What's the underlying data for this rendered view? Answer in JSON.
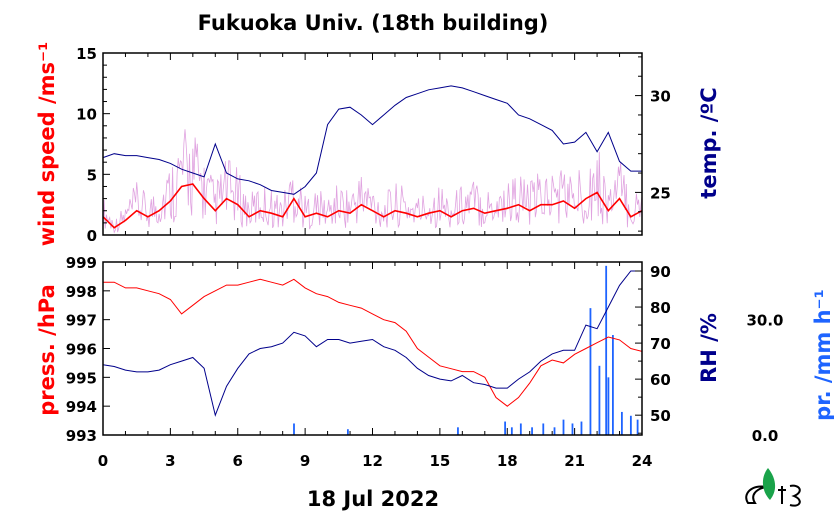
{
  "chart_data": [
    {
      "type": "line",
      "title": "Fukuoka Univ. (18th building)",
      "x_range": [
        0,
        24
      ],
      "ylabel_left": "wind speed /ms⁻¹",
      "ylabel_right": "temp. /ºC",
      "ylim_left": [
        0,
        15
      ],
      "ylim_right": [
        22.8,
        32.2
      ],
      "left_ticks": [
        0,
        5,
        10,
        15
      ],
      "right_ticks": [
        25,
        30
      ],
      "colors": {
        "wind": "#ff0000",
        "wind_gust": "#dd99dd",
        "temp": "#00008b"
      },
      "series": [
        {
          "axis": "left",
          "x": [
            0,
            0.5,
            1,
            1.5,
            2,
            2.5,
            3,
            3.5,
            4,
            4.5,
            5,
            5.5,
            6,
            6.5,
            7,
            7.5,
            8,
            8.5,
            9,
            9.5,
            10,
            10.5,
            11,
            11.5,
            12,
            12.5,
            13,
            13.5,
            14,
            14.5,
            15,
            15.5,
            16,
            16.5,
            17,
            17.5,
            18,
            18.5,
            19,
            19.5,
            20,
            20.5,
            21,
            21.5,
            22,
            22.5,
            23,
            23.5,
            24
          ],
          "values": [
            1.5,
            0.6,
            1.2,
            2.0,
            1.5,
            2.0,
            2.8,
            4.0,
            4.2,
            3.0,
            2.0,
            3.0,
            2.5,
            1.5,
            2.0,
            1.8,
            1.5,
            3.0,
            1.5,
            1.8,
            1.5,
            2.0,
            1.8,
            2.5,
            2.0,
            1.5,
            2.0,
            1.8,
            1.5,
            1.8,
            2.0,
            1.5,
            2.0,
            2.2,
            1.8,
            2.0,
            2.2,
            2.5,
            2.0,
            2.5,
            2.5,
            2.8,
            2.2,
            3.0,
            3.5,
            2.0,
            3.0,
            1.5,
            2.0
          ]
        },
        {
          "axis": "right",
          "x": [
            0,
            0.5,
            1,
            1.5,
            2,
            2.5,
            3,
            3.5,
            4,
            4.5,
            5,
            5.5,
            6,
            6.5,
            7,
            7.5,
            8,
            8.5,
            9,
            9.5,
            10,
            10.5,
            11,
            11.5,
            12,
            12.5,
            13,
            13.5,
            14,
            14.5,
            15,
            15.5,
            16,
            16.5,
            17,
            17.5,
            18,
            18.5,
            19,
            19.5,
            20,
            20.5,
            21,
            21.5,
            22,
            22.5,
            23,
            23.5,
            24
          ],
          "values": [
            26.8,
            27.0,
            26.9,
            26.9,
            26.8,
            26.7,
            26.5,
            26.2,
            26.0,
            25.8,
            27.5,
            26.0,
            25.7,
            25.6,
            25.4,
            25.1,
            25.0,
            24.9,
            25.3,
            26.0,
            28.5,
            29.3,
            29.4,
            29.0,
            28.5,
            29.0,
            29.5,
            29.9,
            30.1,
            30.3,
            30.4,
            30.5,
            30.4,
            30.2,
            30.0,
            29.8,
            29.6,
            29.0,
            28.8,
            28.5,
            28.2,
            27.5,
            27.6,
            28.1,
            27.1,
            28.1,
            26.6,
            26.1,
            26.1
          ]
        }
      ]
    },
    {
      "type": "line",
      "xlabel": "18 Jul 2022",
      "x_range": [
        0,
        24
      ],
      "x_ticks": [
        0,
        3,
        6,
        9,
        12,
        15,
        18,
        21,
        24
      ],
      "ylabel_left": "press. /hPa",
      "ylabel_right": "RH /%",
      "ylabel_far_right": "pr. /mm h⁻¹",
      "ylim_left": [
        993,
        999
      ],
      "ylim_right": [
        44.5,
        92.5
      ],
      "ylim_far_right": [
        0,
        45
      ],
      "left_ticks": [
        993,
        994,
        995,
        996,
        997,
        998,
        999
      ],
      "right_ticks": [
        50,
        60,
        70,
        80,
        90
      ],
      "far_right_ticks": [
        "0.0",
        "30.0"
      ],
      "colors": {
        "pressure": "#ff0000",
        "rh": "#00008b",
        "precip": "#1e64ff"
      },
      "series": [
        {
          "axis": "left",
          "x": [
            0,
            0.5,
            1,
            1.5,
            2,
            2.5,
            3,
            3.5,
            4,
            4.5,
            5,
            5.5,
            6,
            6.5,
            7,
            7.5,
            8,
            8.5,
            9,
            9.5,
            10,
            10.5,
            11,
            11.5,
            12,
            12.5,
            13,
            13.5,
            14,
            14.5,
            15,
            15.5,
            16,
            16.5,
            17,
            17.5,
            18,
            18.5,
            19,
            19.5,
            20,
            20.5,
            21,
            21.5,
            22,
            22.5,
            23,
            23.5,
            24
          ],
          "values": [
            998.3,
            998.3,
            998.1,
            998.1,
            998.0,
            997.9,
            997.7,
            997.2,
            997.5,
            997.8,
            998.0,
            998.2,
            998.2,
            998.3,
            998.4,
            998.3,
            998.2,
            998.4,
            998.1,
            997.9,
            997.8,
            997.6,
            997.5,
            997.4,
            997.2,
            997.0,
            996.9,
            996.6,
            996.0,
            995.7,
            995.4,
            995.3,
            995.2,
            995.2,
            995.0,
            994.3,
            994.0,
            994.3,
            994.8,
            995.4,
            995.6,
            995.5,
            995.8,
            996.0,
            996.2,
            996.4,
            996.3,
            996.0,
            995.9
          ]
        },
        {
          "axis": "right",
          "x": [
            0,
            0.5,
            1,
            1.5,
            2,
            2.5,
            3,
            3.5,
            4,
            4.5,
            5,
            5.5,
            6,
            6.5,
            7,
            7.5,
            8,
            8.5,
            9,
            9.5,
            10,
            10.5,
            11,
            11.5,
            12,
            12.5,
            13,
            13.5,
            14,
            14.5,
            15,
            15.5,
            16,
            16.5,
            17,
            17.5,
            18,
            18.5,
            19,
            19.5,
            20,
            20.5,
            21,
            21.5,
            22,
            22.5,
            23,
            23.5,
            24
          ],
          "values": [
            64,
            63.5,
            62.5,
            62,
            62,
            62.5,
            64,
            65,
            66,
            63,
            50,
            58,
            63,
            67,
            68.5,
            69,
            70,
            73,
            72,
            69,
            71,
            71,
            70,
            70.5,
            71,
            69,
            68,
            66,
            63,
            61,
            60,
            59.5,
            61,
            59,
            58.5,
            57.5,
            57.5,
            60,
            62,
            65,
            67,
            68,
            68,
            75,
            74,
            80,
            86,
            90,
            90
          ]
        },
        {
          "axis": "far_right",
          "type": "bar",
          "x": [
            8.5,
            10.9,
            15.8,
            17.9,
            18.2,
            18.6,
            19.1,
            19.6,
            20.1,
            20.5,
            20.9,
            21.3,
            21.7,
            22.1,
            22.4,
            22.5,
            22.7,
            23.1,
            23.5,
            23.8
          ],
          "values": [
            3,
            1.5,
            2,
            3.5,
            2,
            3,
            2,
            3,
            2,
            4,
            3,
            3.5,
            33,
            18,
            44,
            15,
            26,
            6,
            5,
            4
          ]
        }
      ]
    }
  ],
  "logo": {
    "label": "logo"
  }
}
